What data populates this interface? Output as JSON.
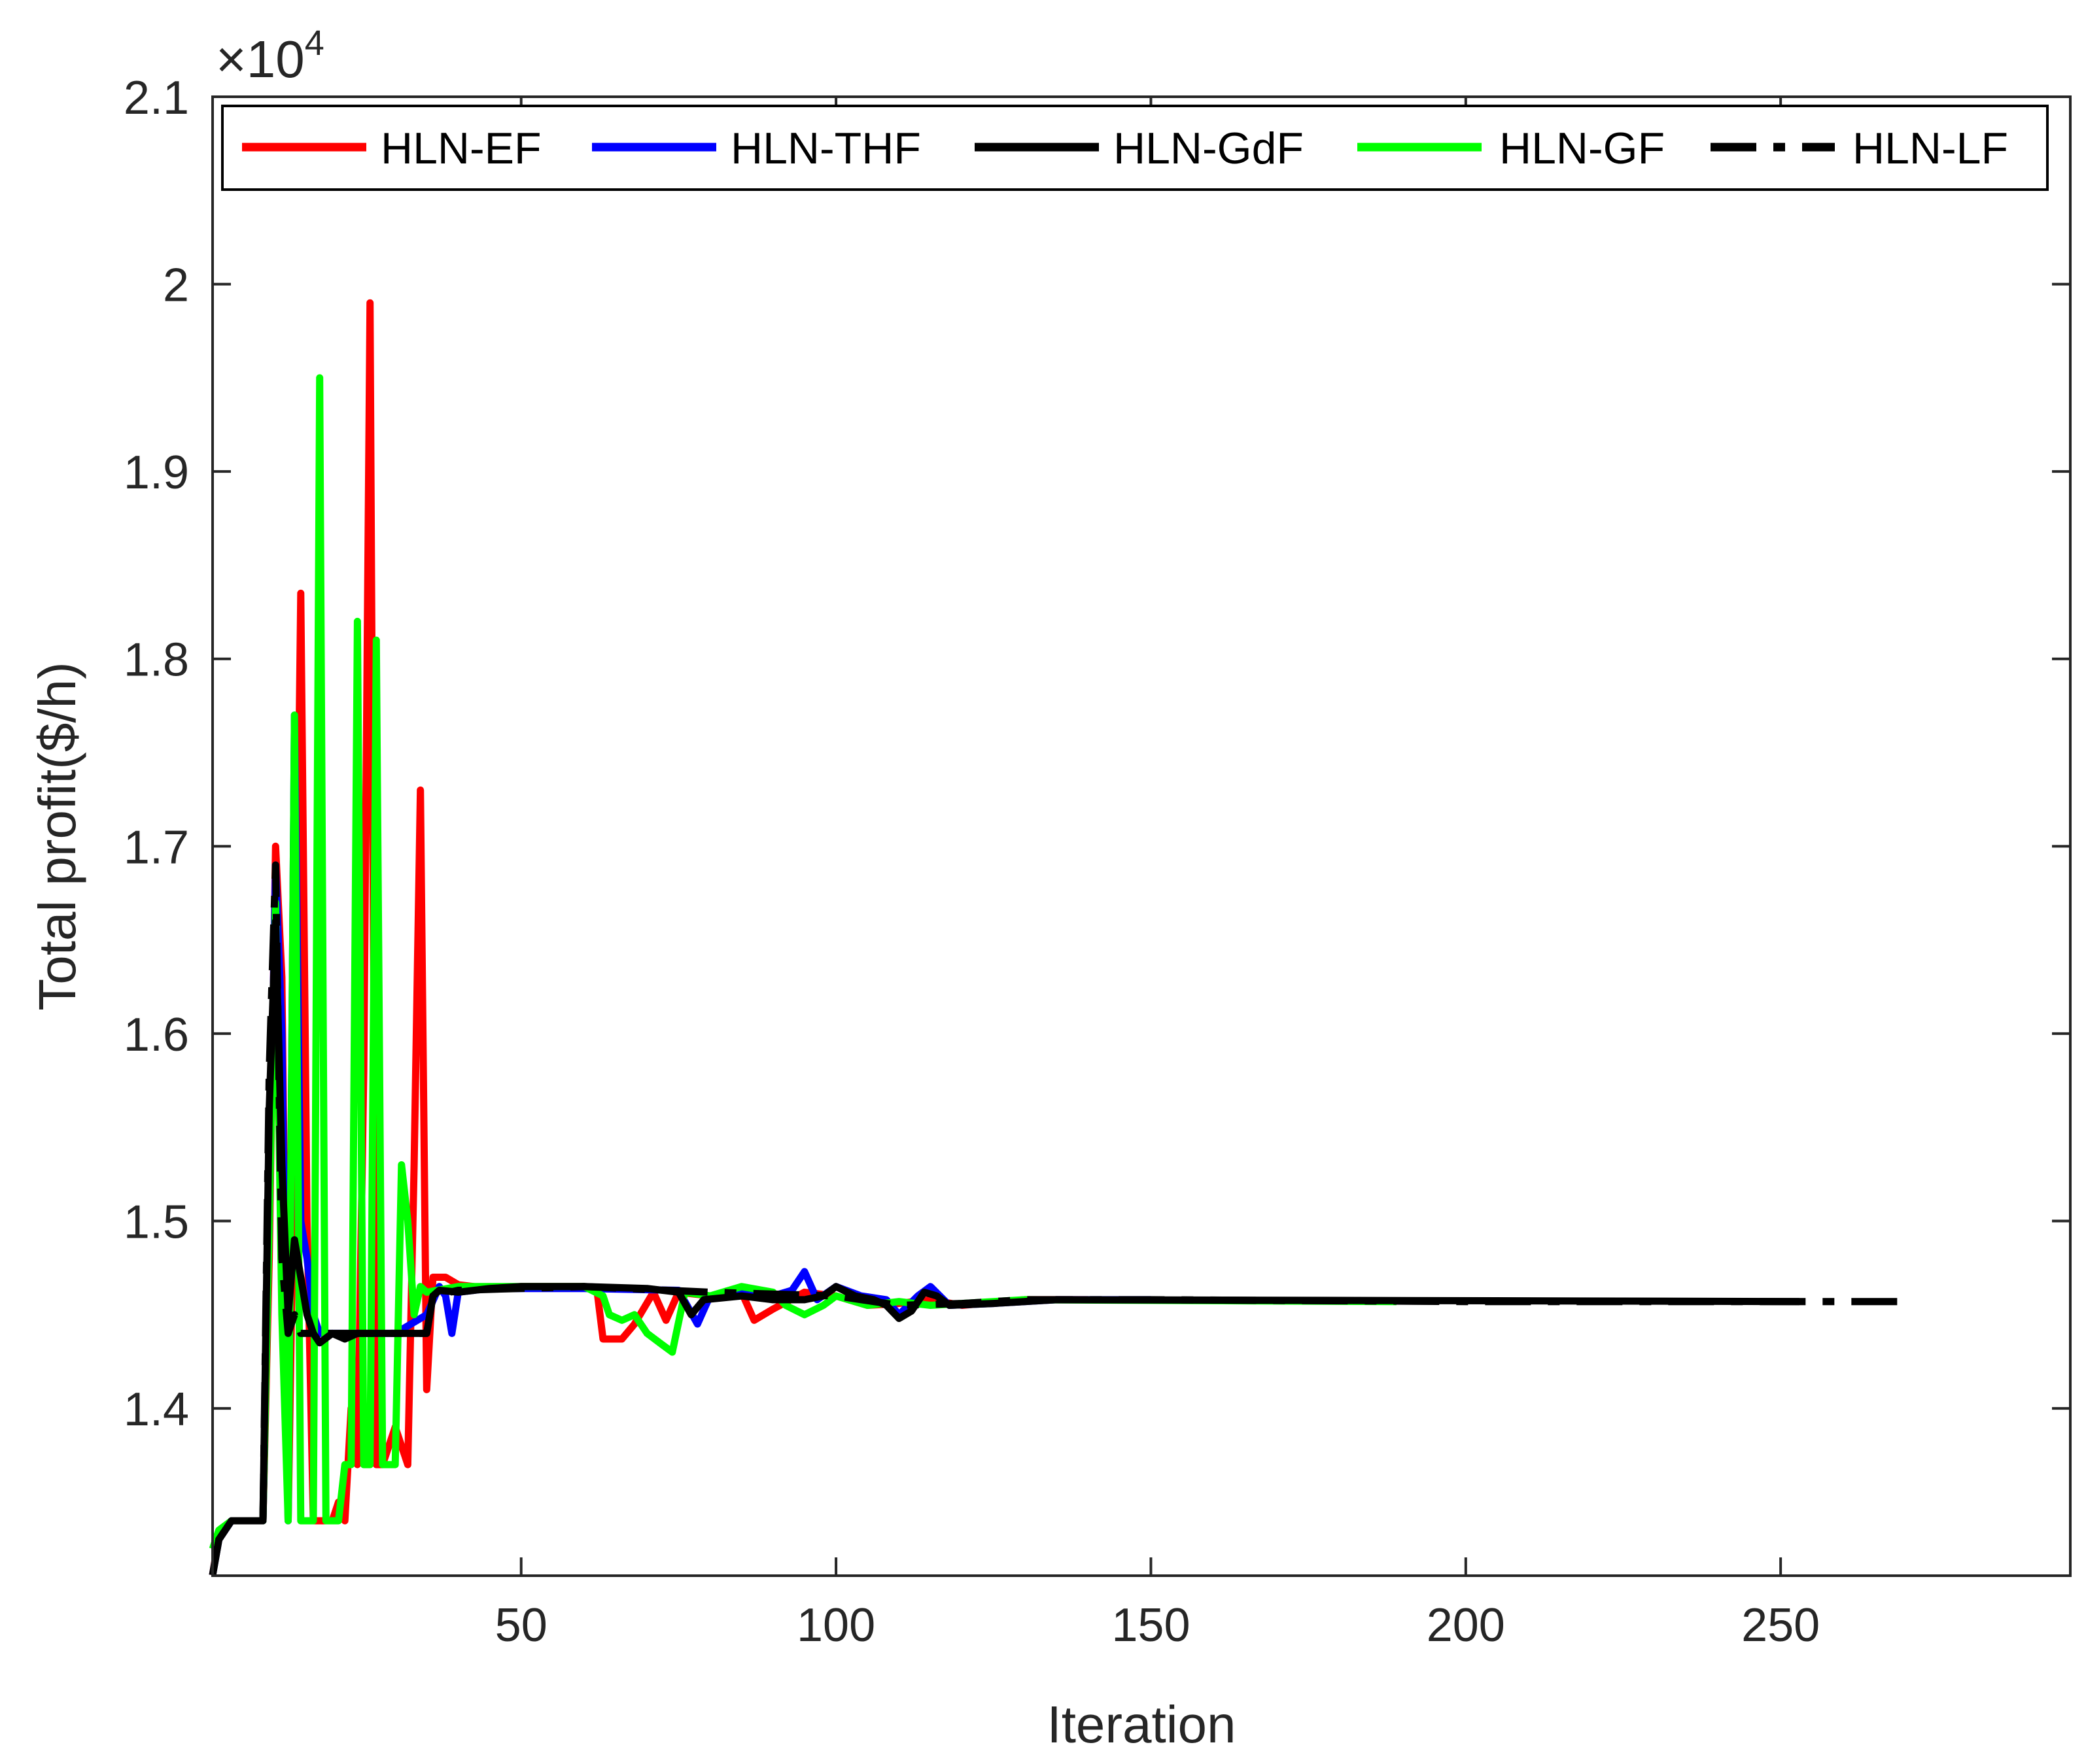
{
  "chart_data": {
    "type": "line",
    "xlabel": "Iteration",
    "ylabel": "Total profit($/h)",
    "y_multiplier": "×10",
    "y_multiplier_exponent": "4",
    "xlim": [
      1,
      296
    ],
    "ylim": [
      1.3107,
      2.1
    ],
    "xticks": [
      50,
      100,
      150,
      200,
      250
    ],
    "yticks": [
      1.4,
      1.5,
      1.6,
      1.7,
      1.8,
      1.9,
      2,
      2.1
    ],
    "ytick_labels": [
      "1.4",
      "1.5",
      "1.6",
      "1.7",
      "1.8",
      "1.9",
      "2",
      "2.1"
    ],
    "grid": false,
    "legend_position": "top",
    "series": [
      {
        "name": "HLN-EF",
        "color": "#ff0000",
        "style": "solid",
        "points": [
          [
            1,
            1.311
          ],
          [
            2,
            1.332
          ],
          [
            4,
            1.34
          ],
          [
            8,
            1.34
          ],
          [
            9,
            1.34
          ],
          [
            10,
            1.48
          ],
          [
            11,
            1.7
          ],
          [
            12,
            1.63
          ],
          [
            13,
            1.34
          ],
          [
            14,
            1.55
          ],
          [
            15,
            1.835
          ],
          [
            16,
            1.5
          ],
          [
            17,
            1.34
          ],
          [
            18,
            1.34
          ],
          [
            20,
            1.34
          ],
          [
            21,
            1.35
          ],
          [
            22,
            1.34
          ],
          [
            23,
            1.4
          ],
          [
            24,
            1.37
          ],
          [
            25,
            1.58
          ],
          [
            26,
            1.99
          ],
          [
            27,
            1.37
          ],
          [
            28,
            1.37
          ],
          [
            30,
            1.39
          ],
          [
            32,
            1.37
          ],
          [
            33,
            1.53
          ],
          [
            34,
            1.73
          ],
          [
            35,
            1.41
          ],
          [
            36,
            1.47
          ],
          [
            38,
            1.47
          ],
          [
            40,
            1.466
          ],
          [
            45,
            1.464
          ],
          [
            50,
            1.465
          ],
          [
            55,
            1.465
          ],
          [
            60,
            1.465
          ],
          [
            62,
            1.464
          ],
          [
            63,
            1.437
          ],
          [
            66,
            1.437
          ],
          [
            68,
            1.445
          ],
          [
            71,
            1.462
          ],
          [
            73,
            1.447
          ],
          [
            75,
            1.462
          ],
          [
            80,
            1.46
          ],
          [
            85,
            1.462
          ],
          [
            87,
            1.447
          ],
          [
            90,
            1.453
          ],
          [
            95,
            1.462
          ],
          [
            100,
            1.46
          ],
          [
            105,
            1.455
          ],
          [
            110,
            1.456
          ],
          [
            115,
            1.458
          ],
          [
            120,
            1.455
          ],
          [
            130,
            1.458
          ],
          [
            140,
            1.458
          ]
        ]
      },
      {
        "name": "HLN-THF",
        "color": "#0000ff",
        "style": "solid",
        "points": [
          [
            1,
            1.311
          ],
          [
            2,
            1.33
          ],
          [
            4,
            1.34
          ],
          [
            8,
            1.34
          ],
          [
            9,
            1.34
          ],
          [
            10,
            1.5
          ],
          [
            11,
            1.69
          ],
          [
            12,
            1.6
          ],
          [
            13,
            1.34
          ],
          [
            14,
            1.77
          ],
          [
            15,
            1.5
          ],
          [
            16,
            1.48
          ],
          [
            17,
            1.45
          ],
          [
            18,
            1.44
          ],
          [
            20,
            1.44
          ],
          [
            25,
            1.44
          ],
          [
            30,
            1.44
          ],
          [
            35,
            1.45
          ],
          [
            37,
            1.465
          ],
          [
            38,
            1.46
          ],
          [
            39,
            1.44
          ],
          [
            40,
            1.462
          ],
          [
            45,
            1.464
          ],
          [
            60,
            1.464
          ],
          [
            75,
            1.463
          ],
          [
            78,
            1.445
          ],
          [
            80,
            1.46
          ],
          [
            85,
            1.462
          ],
          [
            90,
            1.46
          ],
          [
            93,
            1.463
          ],
          [
            95,
            1.473
          ],
          [
            97,
            1.458
          ],
          [
            100,
            1.465
          ],
          [
            104,
            1.46
          ],
          [
            108,
            1.458
          ],
          [
            110,
            1.45
          ],
          [
            113,
            1.46
          ],
          [
            115,
            1.465
          ],
          [
            118,
            1.455
          ],
          [
            125,
            1.456
          ],
          [
            135,
            1.458
          ],
          [
            150,
            1.458
          ]
        ]
      },
      {
        "name": "HLN-GdF",
        "color": "#000000",
        "style": "solid",
        "points": [
          [
            1,
            1.311
          ],
          [
            2,
            1.33
          ],
          [
            4,
            1.34
          ],
          [
            8,
            1.34
          ],
          [
            9,
            1.34
          ],
          [
            10,
            1.56
          ],
          [
            11,
            1.66
          ],
          [
            12,
            1.53
          ],
          [
            13,
            1.45
          ],
          [
            14,
            1.49
          ],
          [
            15,
            1.47
          ],
          [
            16,
            1.45
          ],
          [
            17,
            1.44
          ],
          [
            18,
            1.435
          ],
          [
            20,
            1.44
          ],
          [
            22,
            1.437
          ],
          [
            24,
            1.44
          ],
          [
            26,
            1.44
          ],
          [
            28,
            1.44
          ],
          [
            30,
            1.44
          ],
          [
            33,
            1.44
          ],
          [
            35,
            1.44
          ],
          [
            36,
            1.46
          ],
          [
            37,
            1.463
          ],
          [
            40,
            1.462
          ],
          [
            45,
            1.464
          ],
          [
            50,
            1.465
          ],
          [
            60,
            1.465
          ],
          [
            70,
            1.464
          ],
          [
            75,
            1.462
          ],
          [
            77,
            1.45
          ],
          [
            79,
            1.458
          ],
          [
            85,
            1.46
          ],
          [
            90,
            1.458
          ],
          [
            95,
            1.458
          ],
          [
            98,
            1.46
          ],
          [
            100,
            1.465
          ],
          [
            103,
            1.46
          ],
          [
            106,
            1.458
          ],
          [
            108,
            1.455
          ],
          [
            110,
            1.448
          ],
          [
            112,
            1.452
          ],
          [
            114,
            1.462
          ],
          [
            116,
            1.46
          ],
          [
            118,
            1.455
          ],
          [
            125,
            1.456
          ],
          [
            135,
            1.458
          ],
          [
            253,
            1.457
          ]
        ]
      },
      {
        "name": "HLN-GF",
        "color": "#00ff00",
        "style": "solid",
        "points": [
          [
            1,
            1.325
          ],
          [
            2,
            1.335
          ],
          [
            4,
            1.34
          ],
          [
            8,
            1.34
          ],
          [
            9,
            1.34
          ],
          [
            10,
            1.5
          ],
          [
            11,
            1.67
          ],
          [
            12,
            1.45
          ],
          [
            13,
            1.34
          ],
          [
            14,
            1.77
          ],
          [
            15,
            1.34
          ],
          [
            16,
            1.34
          ],
          [
            17,
            1.34
          ],
          [
            18,
            1.95
          ],
          [
            19,
            1.34
          ],
          [
            20,
            1.34
          ],
          [
            21,
            1.34
          ],
          [
            22,
            1.37
          ],
          [
            23,
            1.37
          ],
          [
            24,
            1.82
          ],
          [
            25,
            1.37
          ],
          [
            26,
            1.37
          ],
          [
            27,
            1.81
          ],
          [
            28,
            1.37
          ],
          [
            29,
            1.37
          ],
          [
            30,
            1.37
          ],
          [
            31,
            1.53
          ],
          [
            32,
            1.5
          ],
          [
            33,
            1.45
          ],
          [
            34,
            1.465
          ],
          [
            35,
            1.462
          ],
          [
            40,
            1.465
          ],
          [
            45,
            1.465
          ],
          [
            55,
            1.465
          ],
          [
            60,
            1.465
          ],
          [
            63,
            1.46
          ],
          [
            64,
            1.45
          ],
          [
            66,
            1.447
          ],
          [
            68,
            1.45
          ],
          [
            70,
            1.44
          ],
          [
            72,
            1.435
          ],
          [
            74,
            1.43
          ],
          [
            76,
            1.462
          ],
          [
            80,
            1.46
          ],
          [
            85,
            1.465
          ],
          [
            90,
            1.462
          ],
          [
            92,
            1.455
          ],
          [
            95,
            1.45
          ],
          [
            98,
            1.455
          ],
          [
            100,
            1.46
          ],
          [
            102,
            1.458
          ],
          [
            105,
            1.455
          ],
          [
            110,
            1.457
          ],
          [
            115,
            1.455
          ],
          [
            120,
            1.456
          ],
          [
            130,
            1.458
          ],
          [
            189,
            1.457
          ]
        ]
      },
      {
        "name": "HLN-LF",
        "color": "#000000",
        "style": "dashdot",
        "points": [
          [
            1,
            1.311
          ],
          [
            2,
            1.33
          ],
          [
            4,
            1.34
          ],
          [
            8,
            1.34
          ],
          [
            9,
            1.34
          ],
          [
            10,
            1.58
          ],
          [
            11,
            1.69
          ],
          [
            12,
            1.48
          ],
          [
            13,
            1.44
          ],
          [
            14,
            1.45
          ],
          [
            15,
            1.44
          ],
          [
            16,
            1.44
          ],
          [
            18,
            1.44
          ],
          [
            20,
            1.44
          ],
          [
            25,
            1.44
          ],
          [
            30,
            1.44
          ],
          [
            35,
            1.44
          ],
          [
            36,
            1.46
          ],
          [
            40,
            1.463
          ],
          [
            60,
            1.465
          ],
          [
            80,
            1.462
          ],
          [
            100,
            1.46
          ],
          [
            110,
            1.455
          ],
          [
            120,
            1.456
          ],
          [
            130,
            1.458
          ],
          [
            150,
            1.458
          ],
          [
            200,
            1.457
          ],
          [
            271,
            1.457
          ]
        ]
      }
    ]
  }
}
